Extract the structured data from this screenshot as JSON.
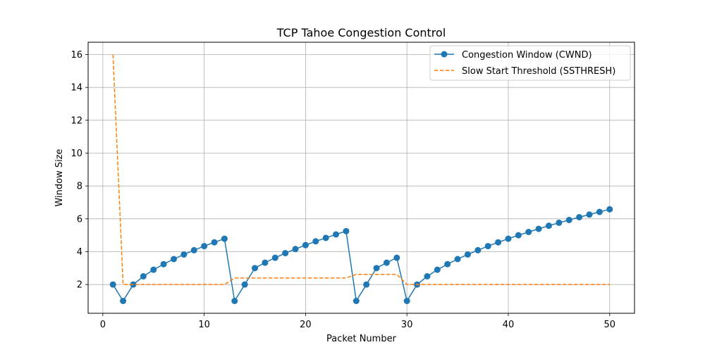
{
  "chart_data": {
    "type": "line",
    "title": "TCP Tahoe Congestion Control",
    "xlabel": "Packet Number",
    "ylabel": "Window Size",
    "xlim": [
      -1.45,
      52.45
    ],
    "ylim": [
      0.25,
      16.75
    ],
    "xticks": [
      0,
      10,
      20,
      30,
      40,
      50
    ],
    "yticks": [
      2,
      4,
      6,
      8,
      10,
      12,
      14,
      16
    ],
    "grid": true,
    "legend": "upper right",
    "x": [
      1,
      2,
      3,
      4,
      5,
      6,
      7,
      8,
      9,
      10,
      11,
      12,
      13,
      14,
      15,
      16,
      17,
      18,
      19,
      20,
      21,
      22,
      23,
      24,
      25,
      26,
      27,
      28,
      29,
      30,
      31,
      32,
      33,
      34,
      35,
      36,
      37,
      38,
      39,
      40,
      41,
      42,
      43,
      44,
      45,
      46,
      47,
      48,
      49,
      50
    ],
    "series": [
      {
        "name": "Congestion Window (CWND)",
        "color": "#1f77b4",
        "style": "solid",
        "marker": "circle",
        "values": [
          2,
          1,
          2,
          2.5,
          2.9,
          3.24,
          3.55,
          3.83,
          4.09,
          4.34,
          4.57,
          4.79,
          1,
          2,
          3,
          3.33,
          3.63,
          3.91,
          4.16,
          4.4,
          4.63,
          4.84,
          5.05,
          5.25,
          1,
          2,
          3,
          3.33,
          3.63,
          1,
          2,
          2.5,
          2.9,
          3.24,
          3.55,
          3.83,
          4.09,
          4.34,
          4.57,
          4.79,
          5.0,
          5.2,
          5.39,
          5.58,
          5.76,
          5.93,
          6.1,
          6.26,
          6.42,
          6.58
        ]
      },
      {
        "name": "Slow Start Threshold (SSTHRESH)",
        "color": "#ff7f0e",
        "style": "dashed",
        "marker": "none",
        "values": [
          16,
          2,
          2,
          2,
          2,
          2,
          2,
          2,
          2,
          2,
          2,
          2,
          2.4,
          2.4,
          2.4,
          2.4,
          2.4,
          2.4,
          2.4,
          2.4,
          2.4,
          2.4,
          2.4,
          2.4,
          2.62,
          2.62,
          2.62,
          2.62,
          2.62,
          2,
          2,
          2,
          2,
          2,
          2,
          2,
          2,
          2,
          2,
          2,
          2,
          2,
          2,
          2,
          2,
          2,
          2,
          2,
          2,
          2
        ]
      }
    ]
  }
}
